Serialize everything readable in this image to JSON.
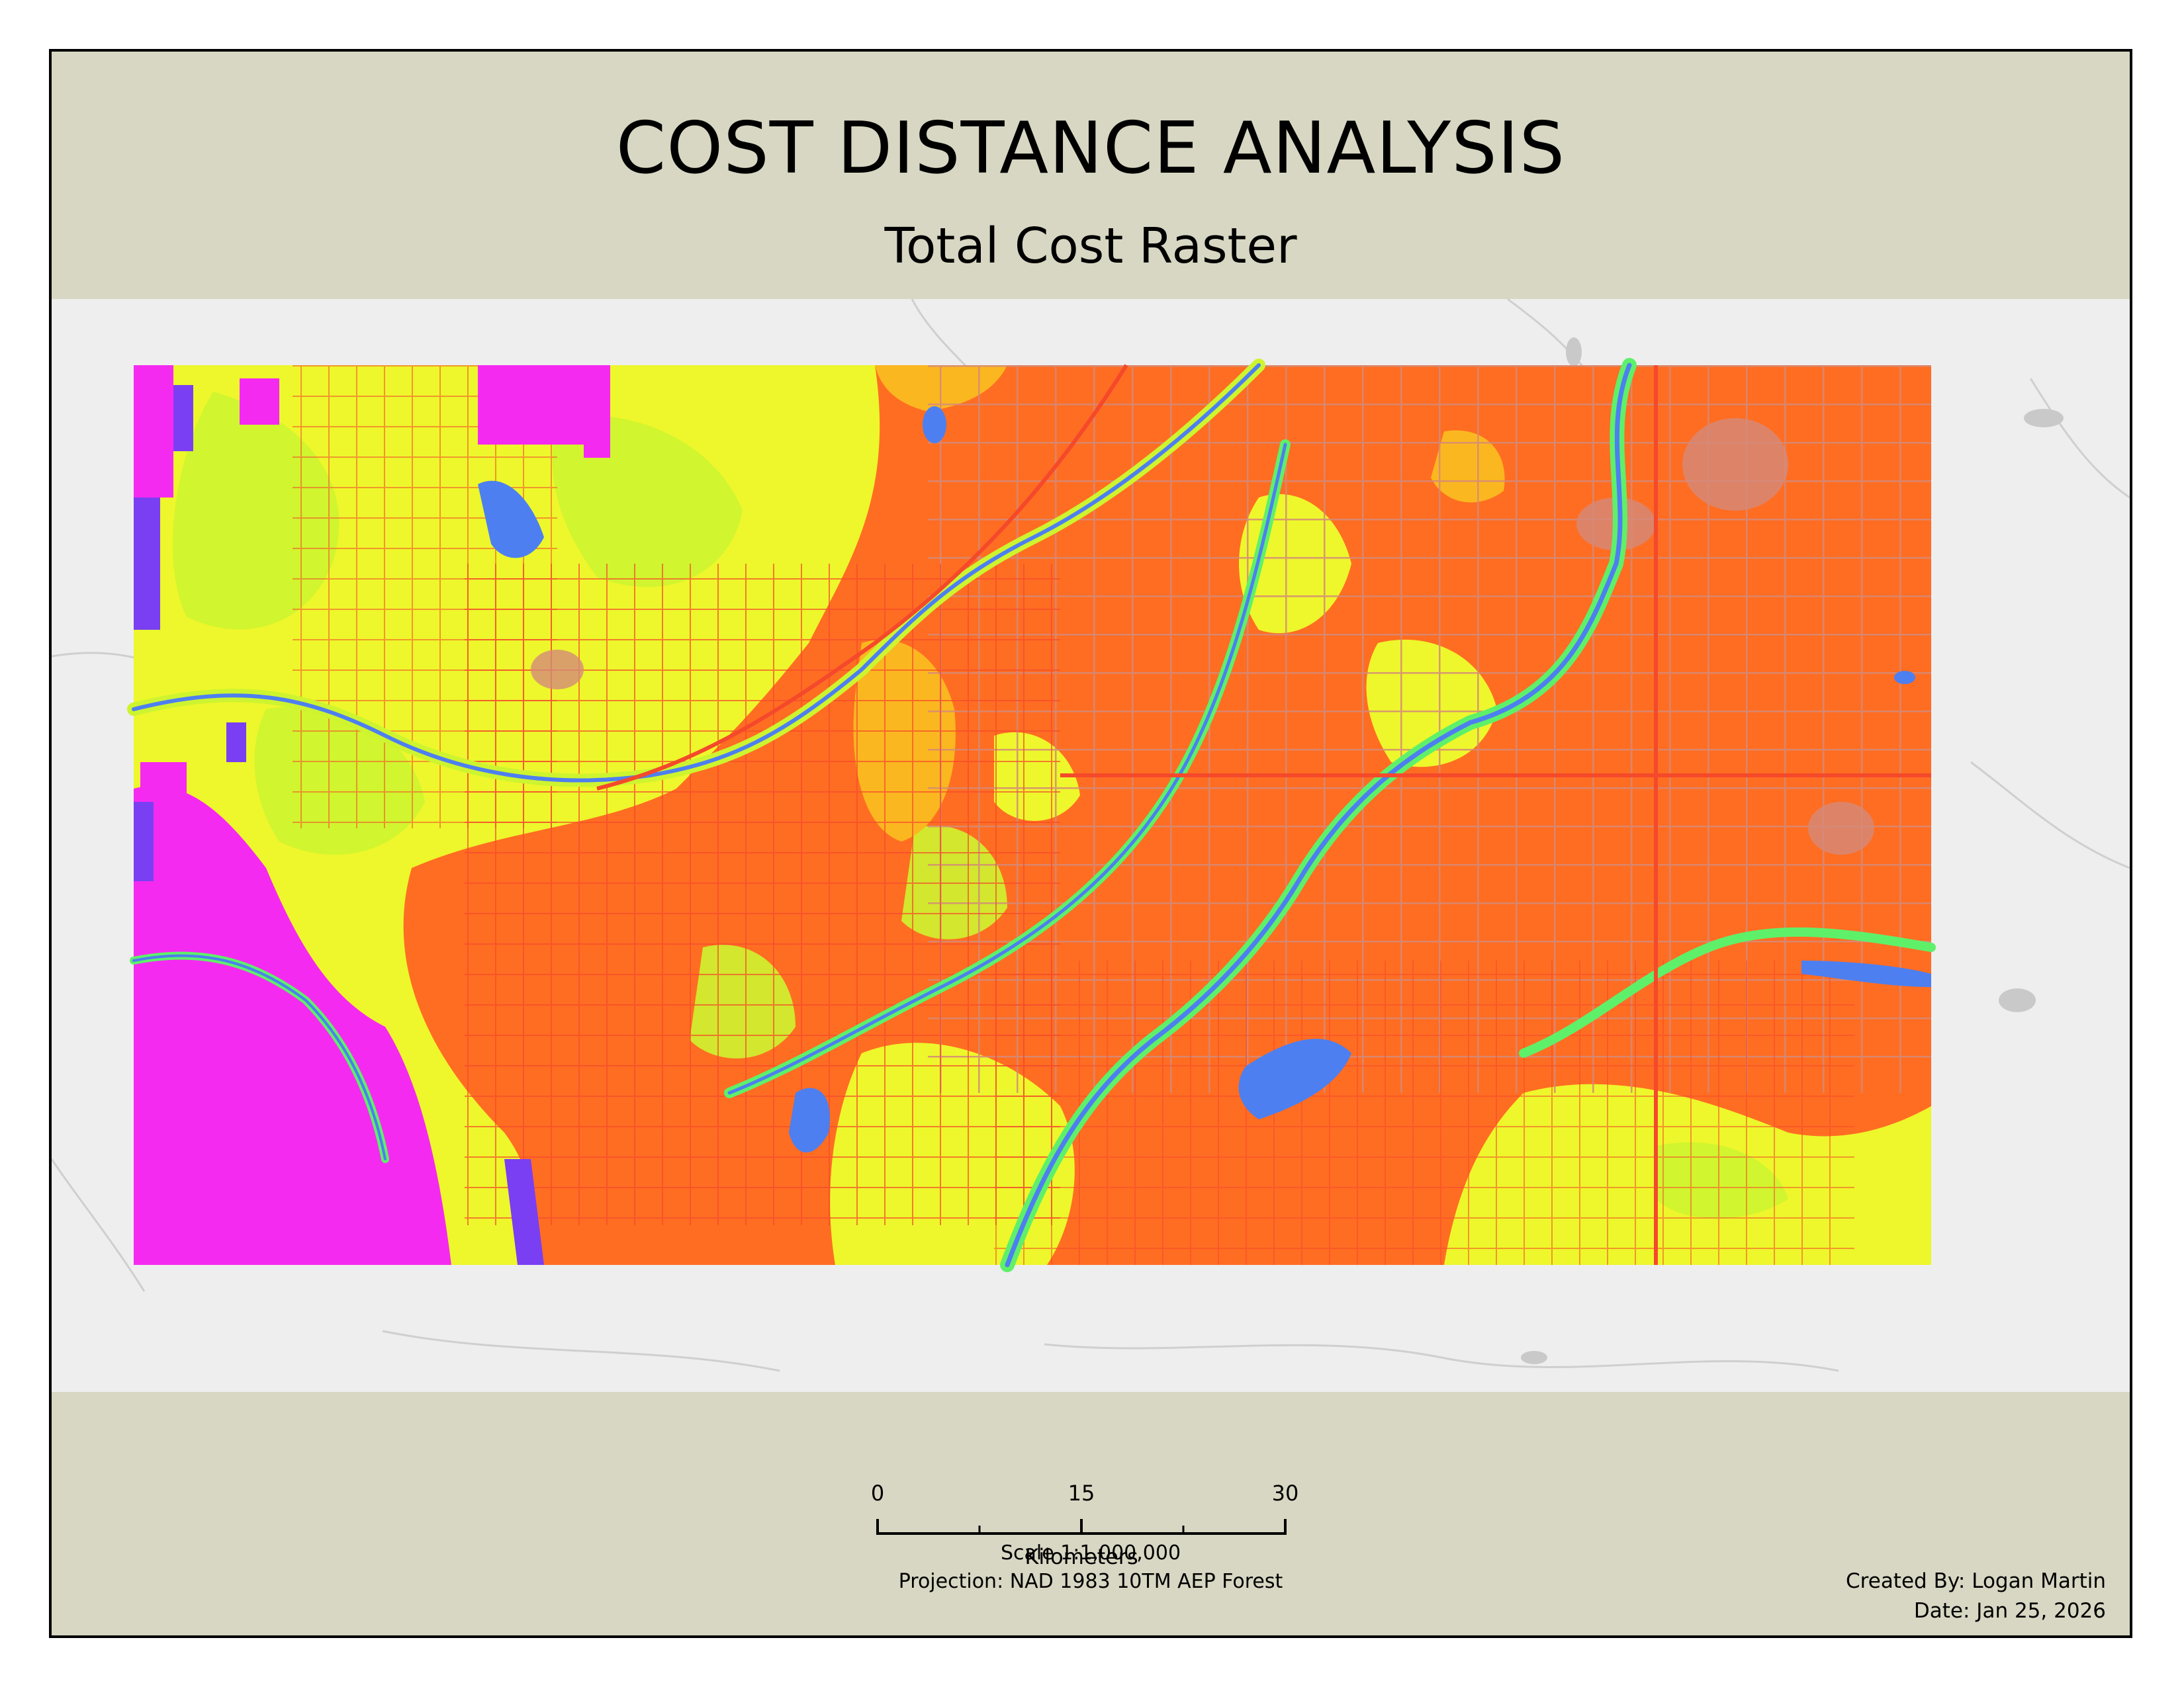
{
  "layout": {
    "title": "COST DISTANCE ANALYSIS",
    "subtitle": "Total Cost Raster"
  },
  "map": {
    "layer": "total-cost-raster",
    "palette": {
      "very_high": "#ff6d22",
      "high": "#f5492b",
      "medium_high": "#fbb71f",
      "medium": "#edf72b",
      "medium_low": "#cdf42f",
      "low": "#5ff06a",
      "very_low": "#4d7ff0",
      "lowest": "#7a3ff2",
      "minimum": "#f52af0",
      "roads": "#d48a7a",
      "basemap": "#eeeeee"
    }
  },
  "scalebar": {
    "ticks": [
      "0",
      "15",
      "30"
    ],
    "unit_label": "Kilometers"
  },
  "scale_info": {
    "scale": "Scale 1:1,000,000",
    "projection": "Projection: NAD 1983 10TM AEP Forest"
  },
  "credits": {
    "author": "Created By: Logan Martin",
    "date": "Date: Jan 25, 2026"
  }
}
